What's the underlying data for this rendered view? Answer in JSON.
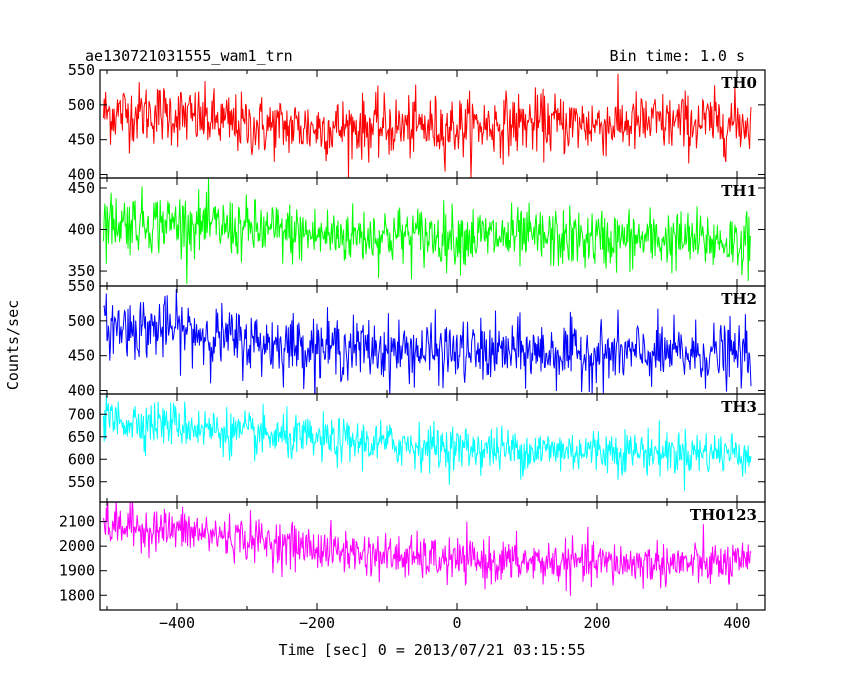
{
  "chart_data": {
    "type": "line",
    "title": "ae130721031555_wam1_trn",
    "bin_time_label": "Bin time: 1.0 s",
    "xlabel": "Time [sec] 0 = 2013/07/21 03:15:55",
    "ylabel": "Counts/sec",
    "xlim": [
      -510,
      440
    ],
    "x_range": [
      -505,
      420
    ],
    "x_ticks": [
      -400,
      -200,
      0,
      200,
      400
    ],
    "grid": false,
    "panels": [
      {
        "name": "TH0",
        "color": "#ff0000",
        "ylim": [
          395,
          550
        ],
        "y_ticks": [
          400,
          450,
          500,
          550
        ],
        "trend": [
          [
            -505,
            488
          ],
          [
            -420,
            488
          ],
          [
            -300,
            470
          ],
          [
            -200,
            467
          ],
          [
            -100,
            468
          ],
          [
            0,
            468
          ],
          [
            100,
            474
          ],
          [
            200,
            472
          ],
          [
            300,
            474
          ],
          [
            420,
            474
          ]
        ],
        "noise_sd": 22
      },
      {
        "name": "TH1",
        "color": "#00ff00",
        "ylim": [
          332,
          462
        ],
        "y_ticks": [
          350,
          400,
          450
        ],
        "trend": [
          [
            -505,
            410
          ],
          [
            -400,
            408
          ],
          [
            -300,
            400
          ],
          [
            -200,
            393
          ],
          [
            -100,
            393
          ],
          [
            0,
            392
          ],
          [
            100,
            390
          ],
          [
            200,
            388
          ],
          [
            300,
            388
          ],
          [
            420,
            385
          ]
        ],
        "noise_sd": 18
      },
      {
        "name": "TH2",
        "color": "#0000ff",
        "ylim": [
          395,
          550
        ],
        "y_ticks": [
          400,
          450,
          500,
          550
        ],
        "trend": [
          [
            -505,
            492
          ],
          [
            -400,
            488
          ],
          [
            -300,
            470
          ],
          [
            -200,
            463
          ],
          [
            -100,
            458
          ],
          [
            0,
            455
          ],
          [
            100,
            455
          ],
          [
            200,
            452
          ],
          [
            300,
            452
          ],
          [
            420,
            452
          ]
        ],
        "noise_sd": 22
      },
      {
        "name": "TH3",
        "color": "#00ffff",
        "ylim": [
          505,
          745
        ],
        "y_ticks": [
          550,
          600,
          650,
          700
        ],
        "trend": [
          [
            -505,
            688
          ],
          [
            -400,
            678
          ],
          [
            -300,
            655
          ],
          [
            -200,
            642
          ],
          [
            -100,
            635
          ],
          [
            0,
            625
          ],
          [
            100,
            620
          ],
          [
            200,
            620
          ],
          [
            300,
            615
          ],
          [
            420,
            615
          ]
        ],
        "noise_sd": 25
      },
      {
        "name": "TH0123",
        "color": "#ff00ff",
        "ylim": [
          1740,
          2180
        ],
        "y_ticks": [
          1800,
          1900,
          2000,
          2100
        ],
        "trend": [
          [
            -505,
            2085
          ],
          [
            -400,
            2065
          ],
          [
            -300,
            2030
          ],
          [
            -200,
            1990
          ],
          [
            -100,
            1960
          ],
          [
            0,
            1940
          ],
          [
            100,
            1935
          ],
          [
            200,
            1930
          ],
          [
            300,
            1930
          ],
          [
            420,
            1925
          ]
        ],
        "noise_sd": 45
      }
    ]
  }
}
